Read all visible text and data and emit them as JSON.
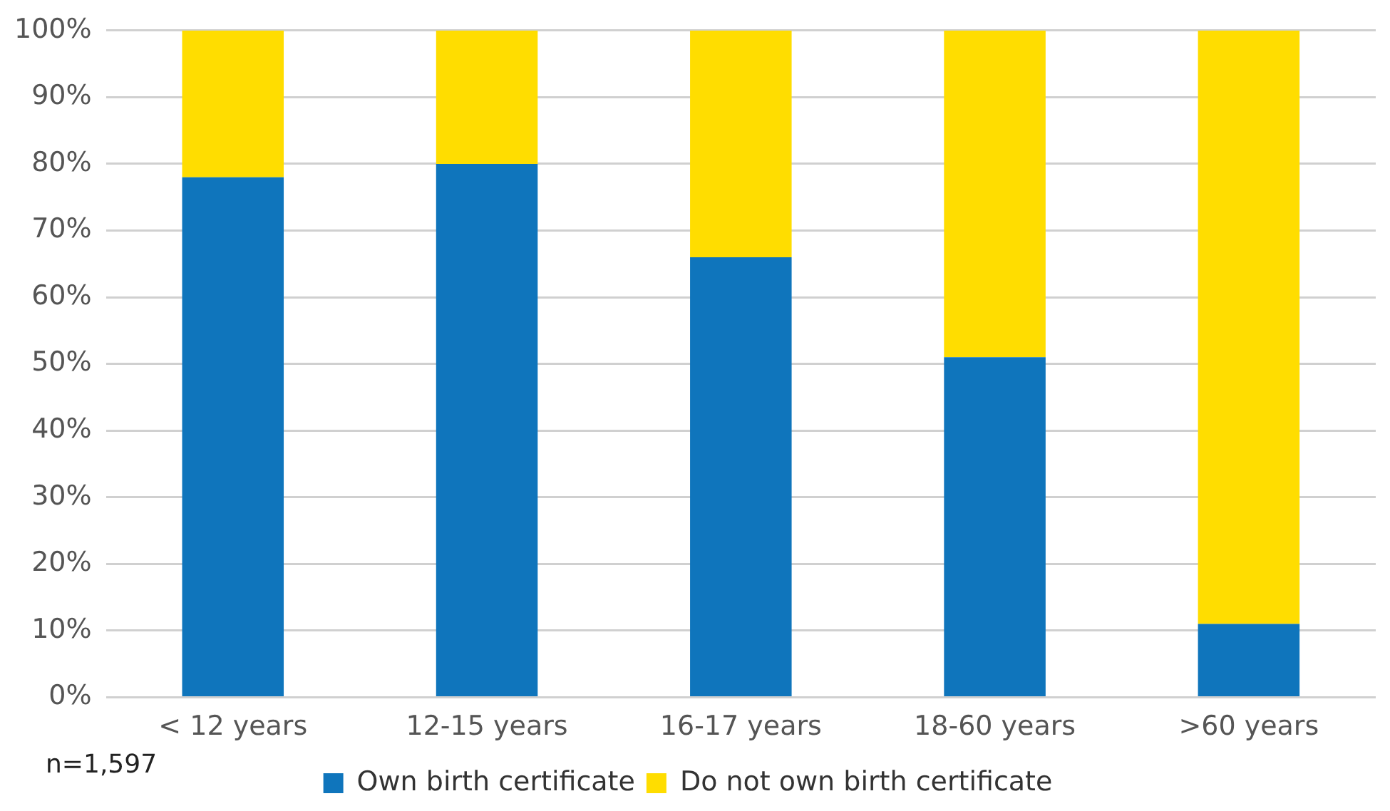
{
  "chart_data": {
    "type": "bar",
    "stacked": true,
    "categories": [
      "< 12 years",
      "12-15 years",
      "16-17 years",
      "18-60 years",
      ">60 years"
    ],
    "series": [
      {
        "name": "Own birth certificate",
        "color": "#0f75bc",
        "values": [
          78,
          80,
          66,
          51,
          11
        ]
      },
      {
        "name": "Do not own birth certificate",
        "color": "#ffdd00",
        "values": [
          22,
          20,
          34,
          49,
          89
        ]
      }
    ],
    "ylim": [
      0,
      100
    ],
    "yticks": [
      {
        "value": 0,
        "label": "0%"
      },
      {
        "value": 10,
        "label": "10%"
      },
      {
        "value": 20,
        "label": "20%"
      },
      {
        "value": 30,
        "label": "30%"
      },
      {
        "value": 40,
        "label": "40%"
      },
      {
        "value": 50,
        "label": "50%"
      },
      {
        "value": 60,
        "label": "60%"
      },
      {
        "value": 70,
        "label": "70%"
      },
      {
        "value": 80,
        "label": "80%"
      },
      {
        "value": 90,
        "label": "90%"
      },
      {
        "value": 100,
        "label": "100%"
      }
    ],
    "grid": "y",
    "legend": "bottom",
    "annotations": [
      "n=1,597"
    ]
  }
}
